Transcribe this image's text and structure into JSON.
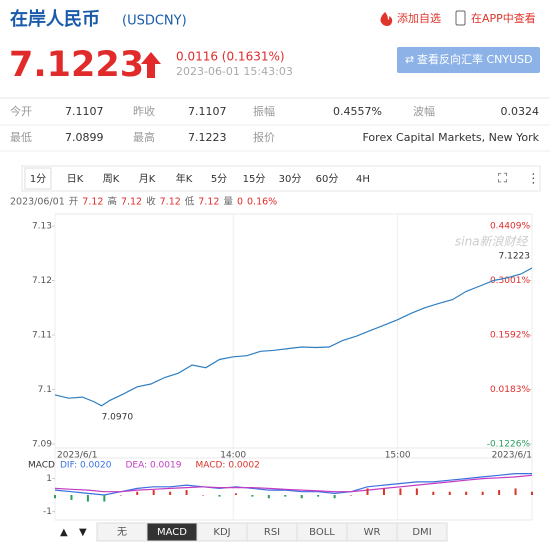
{
  "header": {
    "title": "在岸人民币",
    "code": "(USDCNY)",
    "add_watch": "添加自选",
    "view_in_app": "在APP中查看"
  },
  "quote": {
    "price": "7.1223",
    "change": "0.0116 (0.1631%)",
    "time": "2023-06-01 15:43:03",
    "reverse_button": "查看反向汇率 CNYUSD"
  },
  "stats": [
    [
      "今开",
      "7.1107",
      "昨收",
      "7.1107",
      "振幅",
      "0.4557%",
      "波幅",
      "0.0324"
    ],
    [
      "最低",
      "7.0899",
      "最高",
      "7.1223",
      "报价",
      "Forex Capital Markets, New York"
    ]
  ],
  "period_tabs": [
    "1分",
    "日K",
    "周K",
    "月K",
    "年K",
    "5分",
    "15分",
    "30分",
    "60分",
    "4H"
  ],
  "ohlc_line": {
    "date": "2023/06/01",
    "items": [
      [
        "开",
        "7.12"
      ],
      [
        "高",
        "7.12"
      ],
      [
        "收",
        "7.12"
      ],
      [
        "低",
        "7.12"
      ],
      [
        "量",
        "0"
      ]
    ],
    "change": "0.16%"
  },
  "indicator_tabs": [
    "无",
    "MACD",
    "KDJ",
    "RSI",
    "BOLL",
    "WR",
    "DMI"
  ],
  "chart_data": [
    {
      "type": "line",
      "watermark": "sina新浪财经",
      "x": [
        0,
        5,
        10,
        14,
        17,
        20,
        25,
        30,
        35,
        40,
        45,
        50,
        55,
        60,
        65,
        70,
        75,
        80,
        85,
        90,
        95,
        100,
        105,
        110,
        115,
        120,
        125,
        130,
        135,
        140,
        145,
        150,
        155,
        160,
        165,
        170,
        174
      ],
      "series": [
        {
          "color": "#2f7fc1",
          "values": [
            7.099,
            7.0984,
            7.0986,
            7.0978,
            7.097,
            7.098,
            7.0992,
            7.1005,
            7.101,
            7.1022,
            7.103,
            7.1045,
            7.104,
            7.1055,
            7.106,
            7.1062,
            7.107,
            7.1072,
            7.1075,
            7.1078,
            7.1077,
            7.1078,
            7.109,
            7.1098,
            7.1108,
            7.1118,
            7.1128,
            7.114,
            7.115,
            7.1158,
            7.1165,
            7.118,
            7.119,
            7.12,
            7.1205,
            7.1212,
            7.1223
          ]
        }
      ],
      "xlim": [
        0,
        174
      ],
      "xticks": [
        {
          "value": 0,
          "label": "2023/6/1"
        },
        {
          "value": 65,
          "label": "14:00"
        },
        {
          "value": 125,
          "label": "15:00"
        },
        {
          "value": 174,
          "label": "2023/6/1"
        }
      ],
      "ylim": [
        7.09,
        7.13
      ],
      "yticks": [
        7.13,
        7.12,
        7.11,
        7.1,
        7.09
      ],
      "y2lim": [
        -0.1226,
        0.4409
      ],
      "y2ticks": [
        {
          "value": 0.4409,
          "label": "0.4409%"
        },
        {
          "value": 0.3001,
          "label": "0.3001%"
        },
        {
          "value": 0.1592,
          "label": "0.1592%"
        },
        {
          "value": 0.0183,
          "label": "0.0183%"
        },
        {
          "value": -0.1226,
          "label": "-0.1226%"
        }
      ],
      "grid": true,
      "annotations": [
        {
          "label": "7.1223",
          "x": 174,
          "y": 7.1223
        },
        {
          "label": "7.0970",
          "x": 17,
          "y": 7.097
        }
      ]
    },
    {
      "type": "line",
      "title": "MACD",
      "x": [
        0,
        6,
        12,
        18,
        24,
        30,
        36,
        42,
        48,
        54,
        60,
        66,
        72,
        78,
        84,
        90,
        96,
        102,
        108,
        114,
        120,
        126,
        132,
        138,
        144,
        150,
        156,
        162,
        168,
        174
      ],
      "series": [
        {
          "name": "DIF: 0.0020",
          "color": "#3b6fe0",
          "kind": "line",
          "values": [
            0.3,
            0.2,
            0.1,
            0.0,
            0.2,
            0.4,
            0.5,
            0.5,
            0.6,
            0.5,
            0.4,
            0.5,
            0.4,
            0.3,
            0.3,
            0.2,
            0.2,
            0.1,
            0.2,
            0.5,
            0.6,
            0.7,
            0.8,
            0.8,
            0.9,
            1.0,
            1.1,
            1.2,
            1.3,
            1.3
          ]
        },
        {
          "name": "DEA: 0.0019",
          "color": "#c33bc3",
          "kind": "line",
          "values": [
            0.4,
            0.35,
            0.3,
            0.2,
            0.2,
            0.3,
            0.35,
            0.4,
            0.45,
            0.5,
            0.45,
            0.45,
            0.45,
            0.4,
            0.35,
            0.3,
            0.25,
            0.2,
            0.2,
            0.3,
            0.4,
            0.5,
            0.6,
            0.7,
            0.8,
            0.9,
            1.0,
            1.05,
            1.1,
            1.2
          ]
        },
        {
          "name": "MACD: 0.0002",
          "color": "#d9342b",
          "kind": "bar",
          "down_color": "#2a9d5c",
          "values": [
            -0.2,
            -0.3,
            -0.4,
            -0.4,
            0,
            0.2,
            0.3,
            0.2,
            0.3,
            0,
            -0.1,
            0.1,
            -0.1,
            -0.2,
            -0.1,
            -0.2,
            -0.1,
            -0.2,
            0,
            0.4,
            0.4,
            0.4,
            0.4,
            0.2,
            0.2,
            0.2,
            0.2,
            0.3,
            0.4,
            0.2
          ]
        }
      ],
      "xlim": [
        0,
        174
      ],
      "ylim": [
        -1.4,
        1.4
      ],
      "yticks": [
        1,
        -1
      ]
    }
  ]
}
